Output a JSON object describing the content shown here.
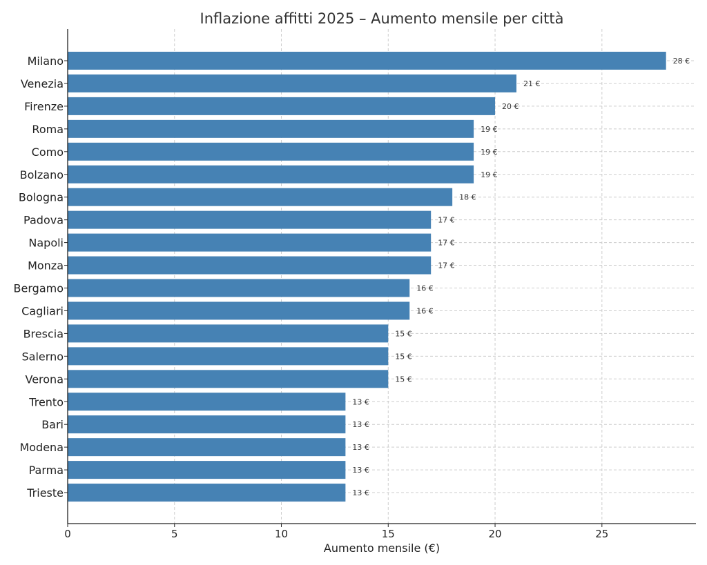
{
  "chart_data": {
    "type": "bar",
    "orientation": "horizontal",
    "title": "Inflazione affitti 2025 – Aumento mensile per città",
    "xlabel": "Aumento mensile (€)",
    "ylabel": "",
    "categories": [
      "Milano",
      "Venezia",
      "Firenze",
      "Roma",
      "Como",
      "Bolzano",
      "Bologna",
      "Padova",
      "Napoli",
      "Monza",
      "Bergamo",
      "Cagliari",
      "Brescia",
      "Salerno",
      "Verona",
      "Trento",
      "Bari",
      "Modena",
      "Parma",
      "Trieste"
    ],
    "values": [
      28,
      21,
      20,
      19,
      19,
      19,
      18,
      17,
      17,
      17,
      16,
      16,
      15,
      15,
      15,
      13,
      13,
      13,
      13,
      13
    ],
    "value_labels": [
      "28 €",
      "21 €",
      "20 €",
      "19 €",
      "19 €",
      "19 €",
      "18 €",
      "17 €",
      "17 €",
      "17 €",
      "16 €",
      "16 €",
      "15 €",
      "15 €",
      "15 €",
      "13 €",
      "13 €",
      "13 €",
      "13 €",
      "13 €"
    ],
    "xticks": [
      "0",
      "5",
      "10",
      "15",
      "20",
      "25"
    ],
    "xtick_values": [
      0,
      5,
      10,
      15,
      20,
      25
    ],
    "xlim": [
      0,
      29.4
    ],
    "grid": true,
    "bar_color": "#4682b4"
  }
}
